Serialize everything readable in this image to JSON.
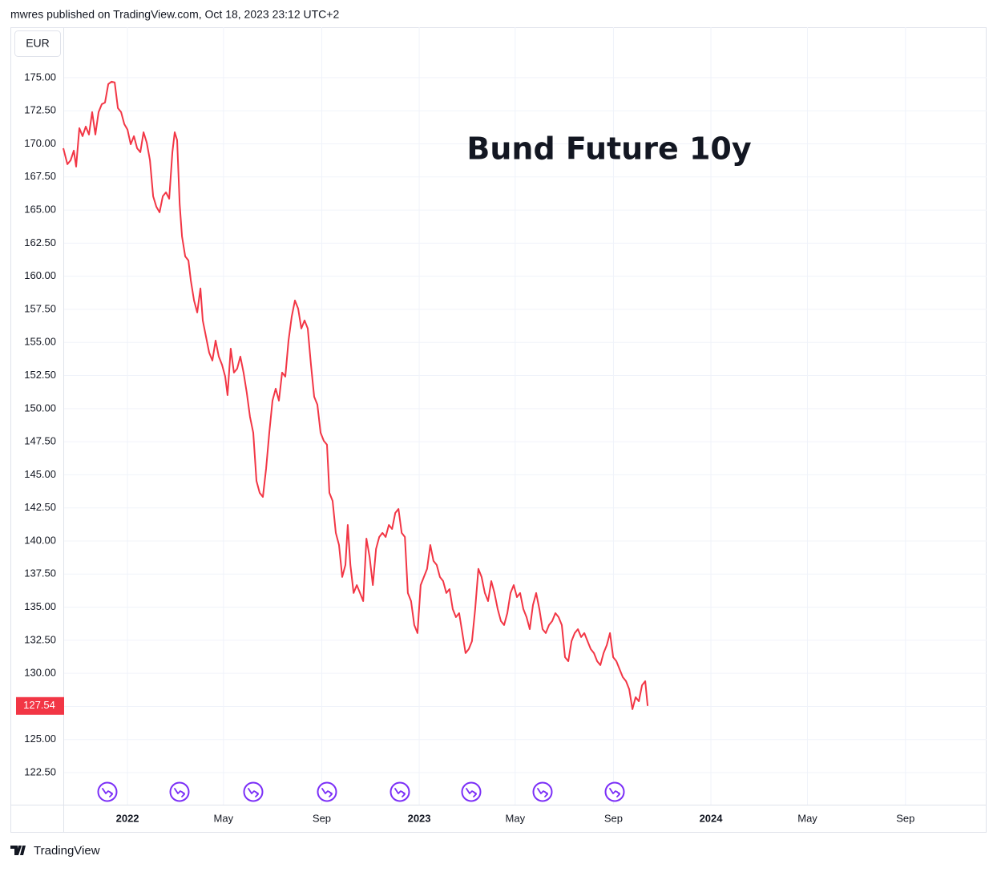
{
  "header": "mwres published on TradingView.com, Oct 18, 2023 23:12 UTC+2",
  "footer": "TradingView",
  "chart_data": {
    "type": "line",
    "title": "Bund Future 10y",
    "unit": "EUR",
    "xlim": [
      2021.78,
      2024.945
    ],
    "ylim": [
      120.08,
      178.81
    ],
    "grid": true,
    "xticks": [
      2022,
      {
        "value": 2022.329,
        "label": "May"
      },
      {
        "value": 2022.666,
        "label": "Sep"
      },
      2023,
      {
        "value": 2023.329,
        "label": "May"
      },
      {
        "value": 2023.666,
        "label": "Sep"
      },
      2024,
      {
        "value": 2024.331,
        "label": "May"
      },
      {
        "value": 2024.667,
        "label": "Sep"
      }
    ],
    "yticks": [
      {
        "value": 122.5,
        "label": "122.50"
      },
      {
        "value": 125,
        "label": "125.00"
      },
      {
        "value": 127.5,
        "label": "127.50"
      },
      {
        "value": 130,
        "label": "130.00"
      },
      {
        "value": 132.5,
        "label": "132.50"
      },
      {
        "value": 135,
        "label": "135.00"
      },
      {
        "value": 137.5,
        "label": "137.50"
      },
      {
        "value": 140,
        "label": "140.00"
      },
      {
        "value": 142.5,
        "label": "142.50"
      },
      {
        "value": 145,
        "label": "145.00"
      },
      {
        "value": 147.5,
        "label": "147.50"
      },
      {
        "value": 150,
        "label": "150.00"
      },
      {
        "value": 152.5,
        "label": "152.50"
      },
      {
        "value": 155,
        "label": "155.00"
      },
      {
        "value": 157.5,
        "label": "157.50"
      },
      {
        "value": 160,
        "label": "160.00"
      },
      {
        "value": 162.5,
        "label": "162.50"
      },
      {
        "value": 165,
        "label": "165.00"
      },
      {
        "value": 167.5,
        "label": "167.50"
      },
      {
        "value": 170,
        "label": "170.00"
      },
      {
        "value": 172.5,
        "label": "172.50"
      },
      {
        "value": 175,
        "label": "175.00"
      }
    ],
    "series": [
      {
        "color": "#f23645",
        "x": [
          2021.78,
          2021.794,
          2021.805,
          2021.816,
          2021.824,
          2021.835,
          2021.846,
          2021.857,
          2021.868,
          2021.879,
          2021.89,
          2021.901,
          2021.912,
          2021.923,
          2021.934,
          2021.945,
          2021.956,
          2021.967,
          2021.978,
          2021.989,
          2022.0,
          2022.011,
          2022.022,
          2022.033,
          2022.044,
          2022.055,
          2022.066,
          2022.077,
          2022.088,
          2022.099,
          2022.11,
          2022.121,
          2022.132,
          2022.143,
          2022.154,
          2022.162,
          2022.17,
          2022.179,
          2022.187,
          2022.198,
          2022.209,
          2022.217,
          2022.228,
          2022.239,
          2022.25,
          2022.258,
          2022.269,
          2022.28,
          2022.291,
          2022.302,
          2022.313,
          2022.324,
          2022.335,
          2022.343,
          2022.354,
          2022.365,
          2022.376,
          2022.387,
          2022.398,
          2022.409,
          2022.42,
          2022.431,
          2022.442,
          2022.453,
          2022.464,
          2022.475,
          2022.486,
          2022.497,
          2022.508,
          2022.519,
          2022.53,
          2022.541,
          2022.552,
          2022.563,
          2022.574,
          2022.585,
          2022.596,
          2022.607,
          2022.618,
          2022.629,
          2022.64,
          2022.651,
          2022.662,
          2022.673,
          2022.684,
          2022.692,
          2022.703,
          2022.714,
          2022.725,
          2022.736,
          2022.747,
          2022.755,
          2022.764,
          2022.775,
          2022.786,
          2022.797,
          2022.808,
          2022.819,
          2022.83,
          2022.841,
          2022.852,
          2022.863,
          2022.874,
          2022.885,
          2022.896,
          2022.907,
          2022.918,
          2022.929,
          2022.94,
          2022.951,
          2022.961,
          2022.972,
          2022.983,
          2022.994,
          2023.005,
          2023.016,
          2023.027,
          2023.038,
          2023.049,
          2023.06,
          2023.071,
          2023.082,
          2023.093,
          2023.104,
          2023.115,
          2023.126,
          2023.137,
          2023.148,
          2023.159,
          2023.17,
          2023.181,
          2023.192,
          2023.203,
          2023.214,
          2023.225,
          2023.236,
          2023.247,
          2023.258,
          2023.269,
          2023.28,
          2023.291,
          2023.302,
          2023.313,
          2023.324,
          2023.335,
          2023.346,
          2023.357,
          2023.368,
          2023.379,
          2023.39,
          2023.401,
          2023.412,
          2023.423,
          2023.434,
          2023.445,
          2023.456,
          2023.467,
          2023.478,
          2023.489,
          2023.5,
          2023.511,
          2023.522,
          2023.533,
          2023.544,
          2023.555,
          2023.566,
          2023.577,
          2023.588,
          2023.599,
          2023.61,
          2023.621,
          2023.632,
          2023.643,
          2023.654,
          2023.665,
          2023.676,
          2023.687,
          2023.698,
          2023.709,
          2023.72,
          2023.731,
          2023.742,
          2023.753,
          2023.764,
          2023.775,
          2023.783
        ],
        "values": [
          169.67,
          168.46,
          168.76,
          169.49,
          168.28,
          171.19,
          170.58,
          171.31,
          170.7,
          172.4,
          170.7,
          172.4,
          173.0,
          173.12,
          174.52,
          174.7,
          174.64,
          172.7,
          172.4,
          171.49,
          171.07,
          169.97,
          170.58,
          169.67,
          169.37,
          170.88,
          170.1,
          168.76,
          166.04,
          165.25,
          164.83,
          166.04,
          166.34,
          165.86,
          169.37,
          170.88,
          170.28,
          165.43,
          163.01,
          161.5,
          161.19,
          159.68,
          158.17,
          157.26,
          159.08,
          156.66,
          155.44,
          154.23,
          153.63,
          155.14,
          153.93,
          153.32,
          152.42,
          151.02,
          154.53,
          152.72,
          153.02,
          153.93,
          152.72,
          151.2,
          149.39,
          148.18,
          144.54,
          143.64,
          143.33,
          145.45,
          148.18,
          150.6,
          151.51,
          150.6,
          152.72,
          152.42,
          155.14,
          156.96,
          158.17,
          157.56,
          156.05,
          156.66,
          156.05,
          153.32,
          150.9,
          150.3,
          148.18,
          147.57,
          147.27,
          143.64,
          143.03,
          140.61,
          139.7,
          137.28,
          138.19,
          141.21,
          138.19,
          136.07,
          136.67,
          136.07,
          135.46,
          140.18,
          138.79,
          136.67,
          139.4,
          140.3,
          140.61,
          140.3,
          141.21,
          140.91,
          142.12,
          142.42,
          140.61,
          140.3,
          136.07,
          135.46,
          133.65,
          133.04,
          136.67,
          137.28,
          137.89,
          139.7,
          138.49,
          138.19,
          137.28,
          136.97,
          136.07,
          136.37,
          134.86,
          134.25,
          134.55,
          133.04,
          131.53,
          131.83,
          132.43,
          134.86,
          137.89,
          137.28,
          136.07,
          135.46,
          136.97,
          136.07,
          134.86,
          133.95,
          133.65,
          134.55,
          136.07,
          136.67,
          135.76,
          136.07,
          134.86,
          134.25,
          133.34,
          135.16,
          136.07,
          134.86,
          133.34,
          133.04,
          133.65,
          133.95,
          134.55,
          134.25,
          133.65,
          131.22,
          130.92,
          132.43,
          133.04,
          133.34,
          132.74,
          133.04,
          132.43,
          131.83,
          131.53,
          130.92,
          130.62,
          131.53,
          132.13,
          133.04,
          131.22,
          130.92,
          130.31,
          129.71,
          129.41,
          128.8,
          127.29,
          128.2,
          127.89,
          129.1,
          129.41,
          127.54
        ]
      }
    ]
  }
}
